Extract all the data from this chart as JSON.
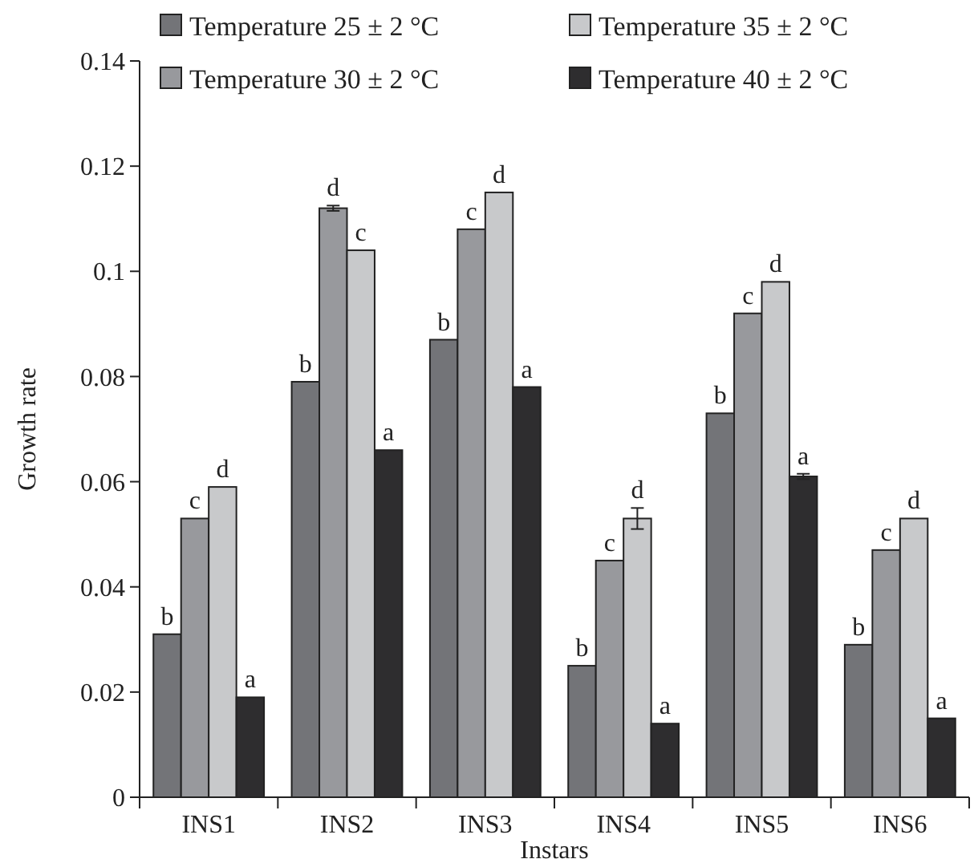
{
  "chart_data": {
    "type": "bar",
    "xlabel": "Instars",
    "ylabel": "Growth rate",
    "categories": [
      "INS1",
      "INS2",
      "INS3",
      "INS4",
      "INS5",
      "INS6"
    ],
    "ylim": [
      0,
      0.14
    ],
    "yticks": [
      0,
      0.02,
      0.04,
      0.06,
      0.08,
      0.1,
      0.12,
      0.14
    ],
    "legend": "top",
    "grid": false,
    "series": [
      {
        "name": "Temperature 25 ± 2 °C",
        "color": "#737478",
        "values": [
          0.031,
          0.079,
          0.087,
          0.025,
          0.073,
          0.029
        ],
        "value_labels": [
          "b",
          "b",
          "b",
          "b",
          "b",
          "b"
        ]
      },
      {
        "name": "Temperature 30 ± 2 °C",
        "color": "#98999d",
        "values": [
          0.053,
          0.112,
          0.108,
          0.045,
          0.092,
          0.047
        ],
        "errors": [
          null,
          0.0005,
          null,
          null,
          null,
          null
        ],
        "value_labels": [
          "c",
          "d",
          "c",
          "c",
          "c",
          "c"
        ]
      },
      {
        "name": "Temperature 35 ± 2 °C",
        "color": "#c8c9cb",
        "values": [
          0.059,
          0.104,
          0.115,
          0.053,
          0.098,
          0.053
        ],
        "errors": [
          null,
          null,
          null,
          0.002,
          null,
          null
        ],
        "value_labels": [
          "d",
          "c",
          "d",
          "d",
          "d",
          "d"
        ]
      },
      {
        "name": "Temperature 40 ± 2 °C",
        "color": "#2e2d2f",
        "values": [
          0.019,
          0.066,
          0.078,
          0.014,
          0.061,
          0.015
        ],
        "errors": [
          null,
          null,
          null,
          null,
          0.0005,
          null
        ],
        "value_labels": [
          "a",
          "a",
          "a",
          "a",
          "a",
          "a"
        ]
      }
    ]
  }
}
